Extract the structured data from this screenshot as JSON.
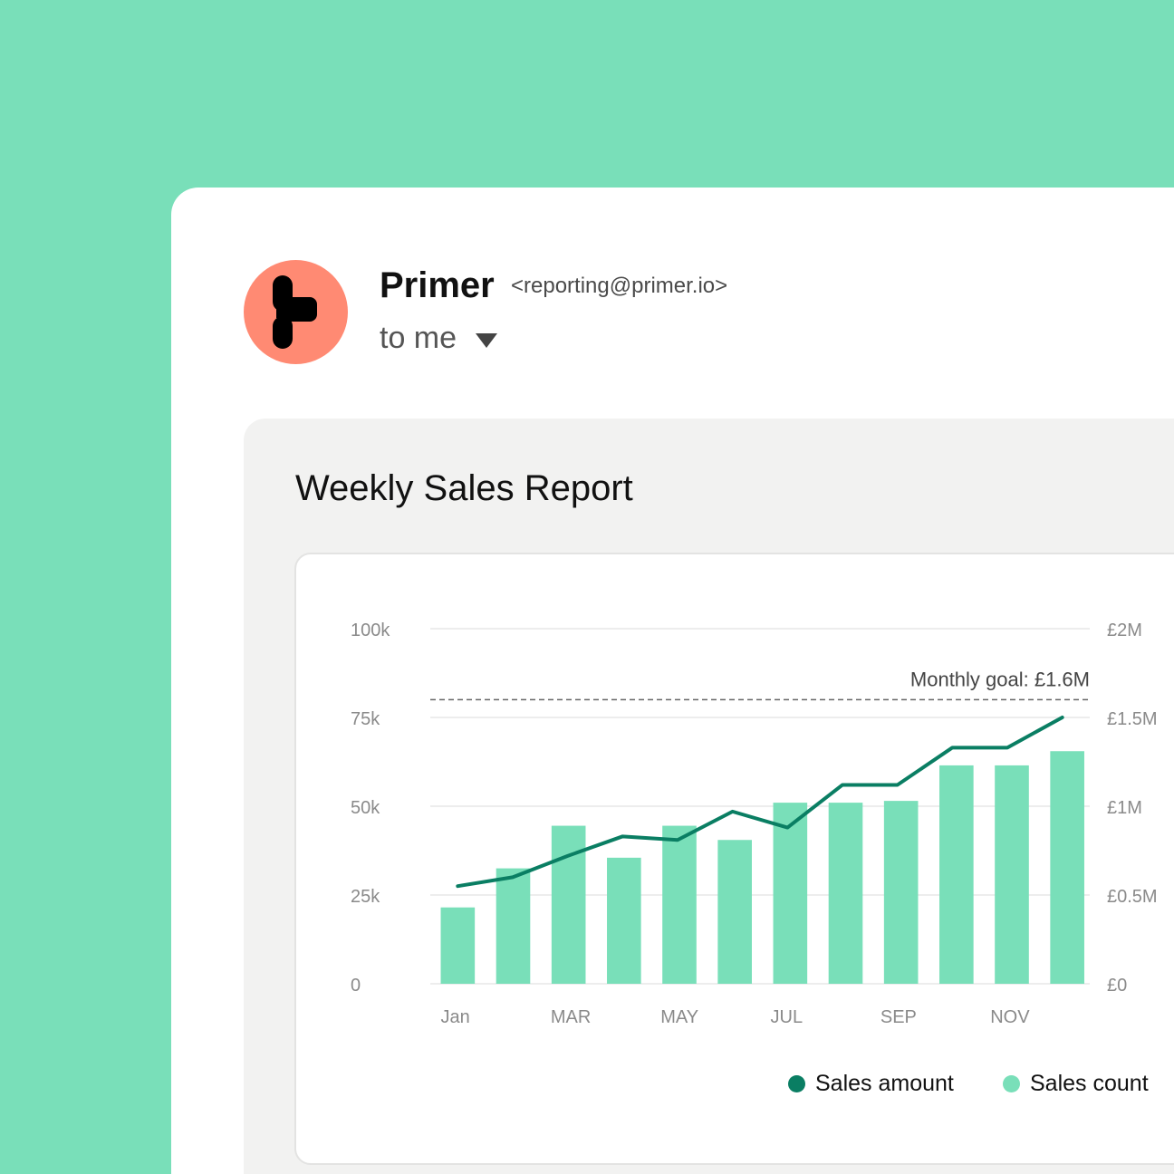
{
  "email": {
    "sender_name": "Primer",
    "sender_email": "<reporting@primer.io>",
    "recipient": "to me",
    "avatar_icon": "primer-logo-icon",
    "avatar_color": "#FF8A73"
  },
  "report": {
    "title": "Weekly Sales Report"
  },
  "colors": {
    "background": "#79DFB9",
    "bar": "#79DFB9",
    "line": "#0A7E63"
  },
  "chart_data": {
    "type": "bar",
    "x_tick_labels": [
      "Jan",
      "MAR",
      "MAY",
      "JUL",
      "SEP",
      "NOV"
    ],
    "left_axis": {
      "ticks": [
        "100k",
        "75k",
        "50k",
        "25k",
        "0"
      ],
      "ylim": [
        0,
        100000
      ]
    },
    "right_axis": {
      "ticks": [
        "£2M",
        "£1.5M",
        "£1M",
        "£0.5M",
        "£0"
      ],
      "ylim": [
        0,
        2000000
      ]
    },
    "series": [
      {
        "name": "Sales count",
        "type": "bar",
        "axis": "left",
        "values": [
          21500,
          32500,
          44500,
          35500,
          44500,
          40500,
          51000,
          51000,
          51500,
          61500,
          61500,
          65500
        ]
      },
      {
        "name": "Sales amount",
        "type": "line",
        "axis": "right",
        "values": [
          550000,
          600000,
          720000,
          830000,
          810000,
          970000,
          880000,
          1120000,
          1120000,
          1330000,
          1330000,
          1500000
        ]
      }
    ],
    "reference_line": {
      "label": "Monthly goal: £1.6M",
      "value": 1600000,
      "axis": "right",
      "style": "dashed"
    },
    "legend": [
      {
        "label": "Sales amount",
        "color": "#0A7E63"
      },
      {
        "label": "Sales count",
        "color": "#79DFB9"
      }
    ],
    "legend_position": "bottom-right",
    "grid": true
  }
}
